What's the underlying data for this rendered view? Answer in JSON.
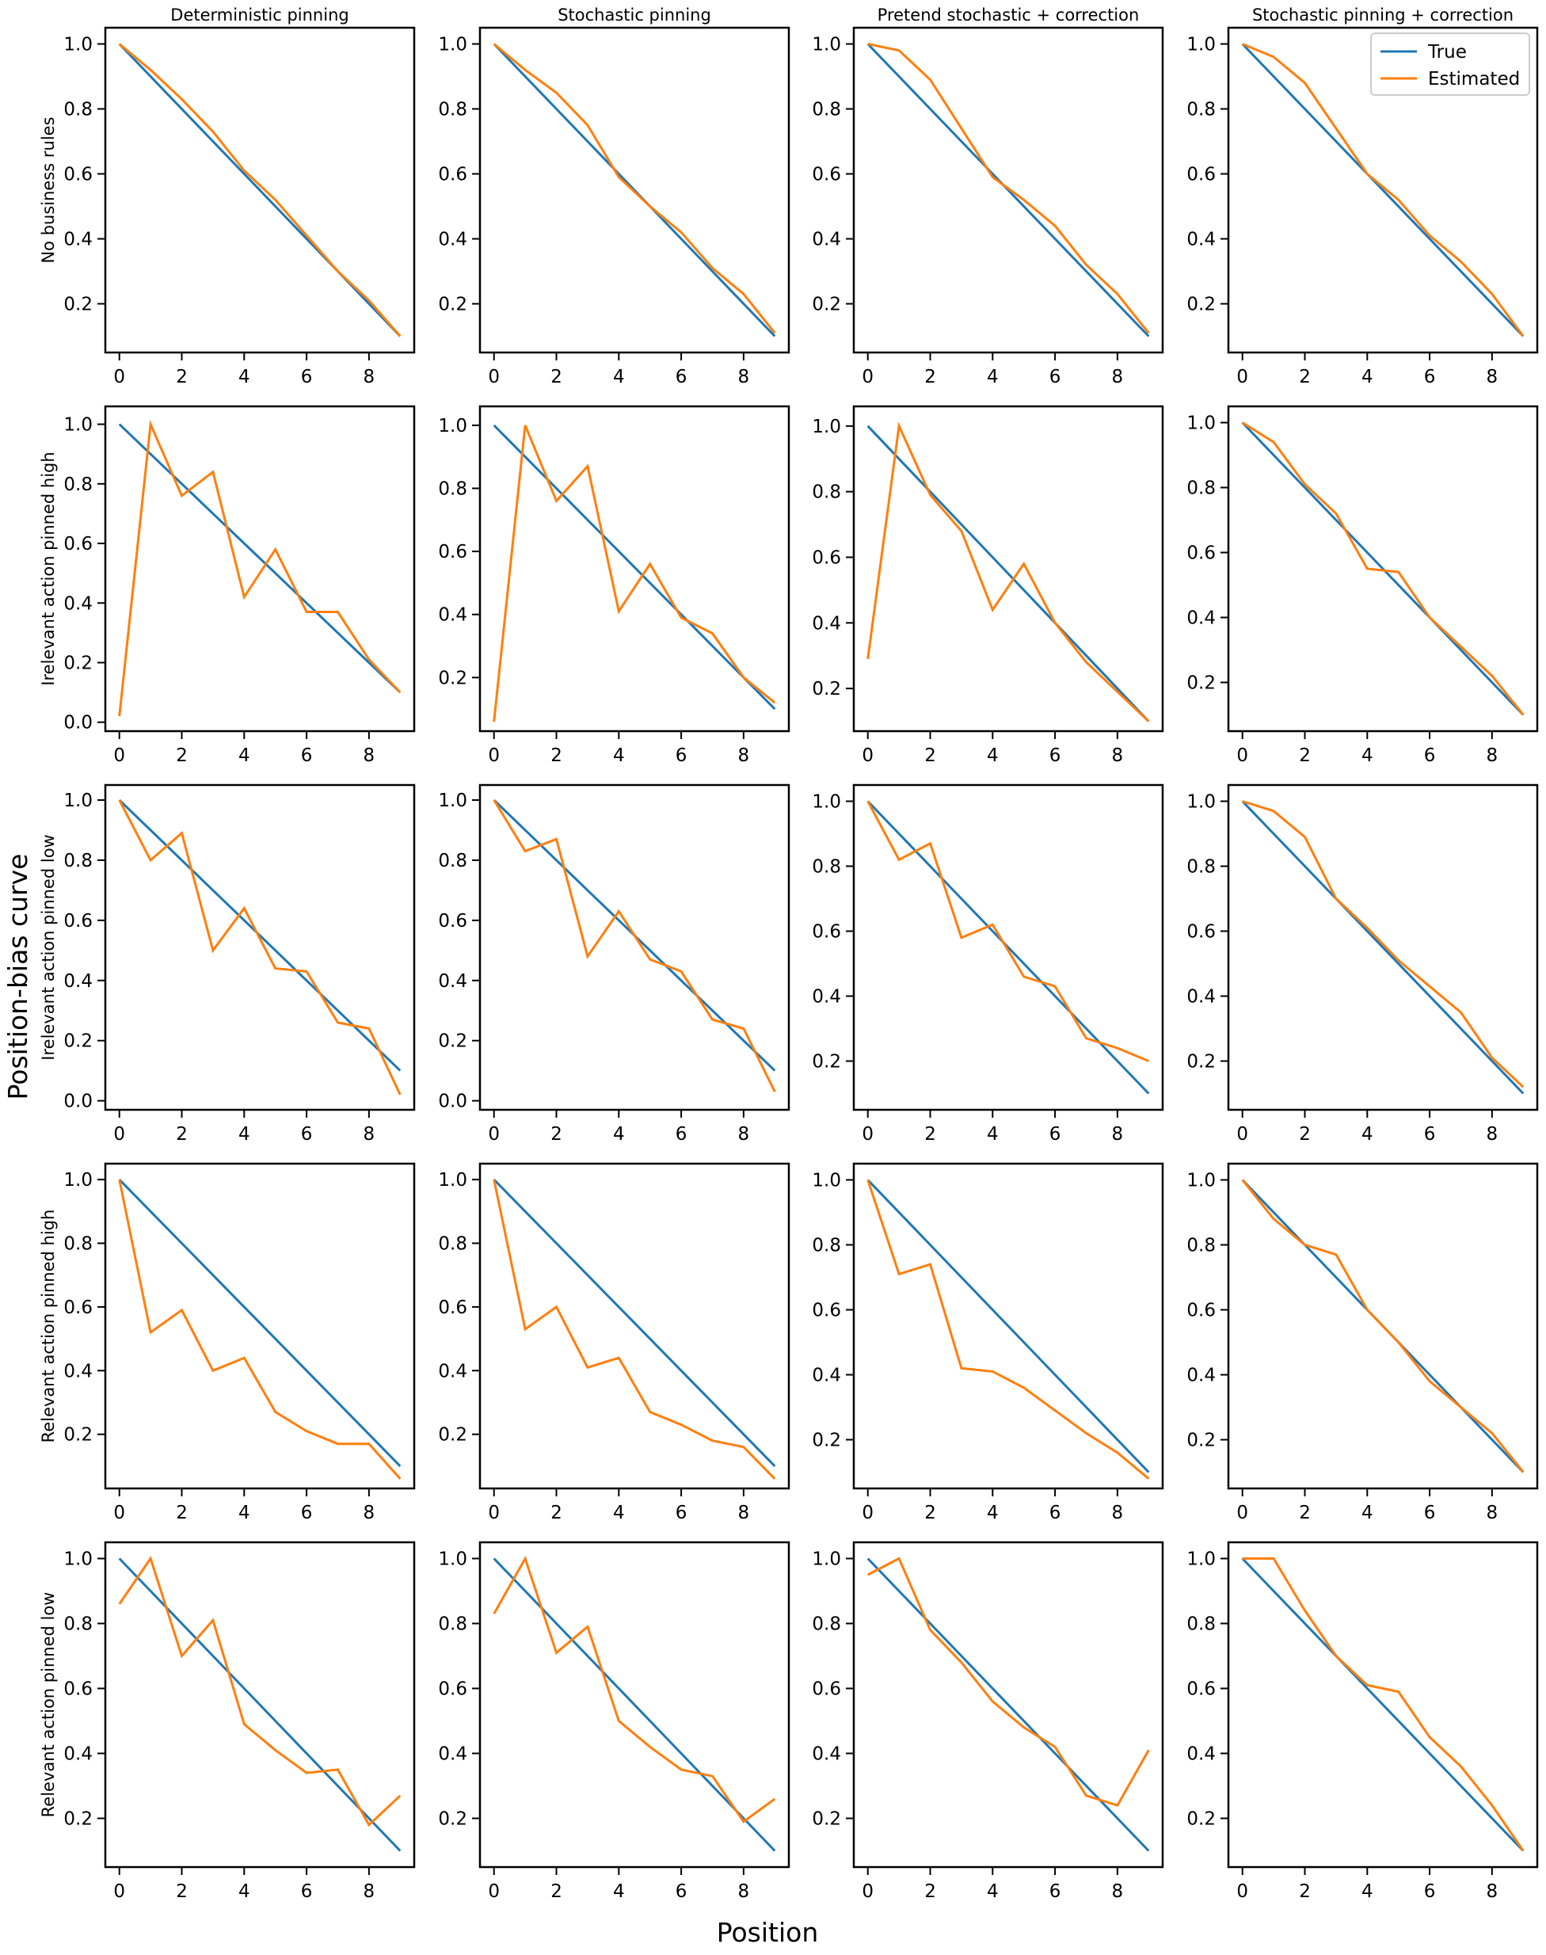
{
  "figure": {
    "ylabel": "Position-bias curve",
    "xlabel": "Position",
    "columns": [
      "Deterministic pinning",
      "Stochastic pinning",
      "Pretend stochastic + correction",
      "Stochastic pinning + correction"
    ],
    "rows": [
      "No business rules",
      "Irelevant action pinned high",
      "Irelevant action pinned low",
      "Relevant action pinned high",
      "Relevant action pinned low"
    ],
    "legend": {
      "entries": [
        "True",
        "Estimated"
      ],
      "placement": "upper-right of top-right panel"
    },
    "colors": {
      "true": "#1f77b4",
      "estimated": "#ff7f0e"
    }
  },
  "chart_data": {
    "type": "line",
    "x": [
      0,
      1,
      2,
      3,
      4,
      5,
      6,
      7,
      8,
      9
    ],
    "xticks": [
      0,
      2,
      4,
      6,
      8
    ],
    "true_curve": [
      1.0,
      0.9,
      0.8,
      0.7,
      0.6,
      0.5,
      0.4,
      0.3,
      0.2,
      0.1
    ],
    "panels": [
      {
        "row": 0,
        "col": 0,
        "ylim": [
          0.05,
          1.05
        ],
        "yticks": [
          0.2,
          0.4,
          0.6,
          0.8,
          1.0
        ],
        "estimated": [
          1.0,
          0.92,
          0.83,
          0.73,
          0.61,
          0.52,
          0.41,
          0.3,
          0.21,
          0.1
        ]
      },
      {
        "row": 0,
        "col": 1,
        "ylim": [
          0.05,
          1.05
        ],
        "yticks": [
          0.2,
          0.4,
          0.6,
          0.8,
          1.0
        ],
        "estimated": [
          1.0,
          0.92,
          0.85,
          0.75,
          0.59,
          0.5,
          0.42,
          0.31,
          0.23,
          0.11
        ]
      },
      {
        "row": 0,
        "col": 2,
        "ylim": [
          0.05,
          1.05
        ],
        "yticks": [
          0.2,
          0.4,
          0.6,
          0.8,
          1.0
        ],
        "estimated": [
          1.0,
          0.98,
          0.89,
          0.74,
          0.59,
          0.52,
          0.44,
          0.32,
          0.23,
          0.11
        ]
      },
      {
        "row": 0,
        "col": 3,
        "ylim": [
          0.05,
          1.05
        ],
        "yticks": [
          0.2,
          0.4,
          0.6,
          0.8,
          1.0
        ],
        "estimated": [
          1.0,
          0.96,
          0.88,
          0.74,
          0.6,
          0.52,
          0.41,
          0.33,
          0.23,
          0.1
        ]
      },
      {
        "row": 1,
        "col": 0,
        "ylim": [
          -0.03,
          1.06
        ],
        "yticks": [
          0.0,
          0.2,
          0.4,
          0.6,
          0.8,
          1.0
        ],
        "estimated": [
          0.02,
          1.0,
          0.76,
          0.84,
          0.42,
          0.58,
          0.37,
          0.37,
          0.21,
          0.1
        ]
      },
      {
        "row": 1,
        "col": 1,
        "ylim": [
          0.03,
          1.06
        ],
        "yticks": [
          0.2,
          0.4,
          0.6,
          0.8,
          1.0
        ],
        "estimated": [
          0.06,
          1.0,
          0.76,
          0.87,
          0.41,
          0.56,
          0.39,
          0.34,
          0.2,
          0.12
        ]
      },
      {
        "row": 1,
        "col": 2,
        "ylim": [
          0.07,
          1.06
        ],
        "yticks": [
          0.2,
          0.4,
          0.6,
          0.8,
          1.0
        ],
        "estimated": [
          0.29,
          1.0,
          0.79,
          0.68,
          0.44,
          0.58,
          0.4,
          0.28,
          0.19,
          0.1
        ]
      },
      {
        "row": 1,
        "col": 3,
        "ylim": [
          0.05,
          1.05
        ],
        "yticks": [
          0.2,
          0.4,
          0.6,
          0.8,
          1.0
        ],
        "estimated": [
          1.0,
          0.94,
          0.81,
          0.72,
          0.55,
          0.54,
          0.4,
          0.31,
          0.22,
          0.1
        ]
      },
      {
        "row": 2,
        "col": 0,
        "ylim": [
          -0.03,
          1.05
        ],
        "yticks": [
          0.0,
          0.2,
          0.4,
          0.6,
          0.8,
          1.0
        ],
        "estimated": [
          1.0,
          0.8,
          0.89,
          0.5,
          0.64,
          0.44,
          0.43,
          0.26,
          0.24,
          0.02
        ]
      },
      {
        "row": 2,
        "col": 1,
        "ylim": [
          -0.03,
          1.05
        ],
        "yticks": [
          0.0,
          0.2,
          0.4,
          0.6,
          0.8,
          1.0
        ],
        "estimated": [
          1.0,
          0.83,
          0.87,
          0.48,
          0.63,
          0.47,
          0.43,
          0.27,
          0.24,
          0.03
        ]
      },
      {
        "row": 2,
        "col": 2,
        "ylim": [
          0.05,
          1.05
        ],
        "yticks": [
          0.2,
          0.4,
          0.6,
          0.8,
          1.0
        ],
        "estimated": [
          1.0,
          0.82,
          0.87,
          0.58,
          0.62,
          0.46,
          0.43,
          0.27,
          0.24,
          0.2
        ]
      },
      {
        "row": 2,
        "col": 3,
        "ylim": [
          0.05,
          1.05
        ],
        "yticks": [
          0.2,
          0.4,
          0.6,
          0.8,
          1.0
        ],
        "estimated": [
          1.0,
          0.97,
          0.89,
          0.7,
          0.61,
          0.51,
          0.43,
          0.35,
          0.21,
          0.12
        ]
      },
      {
        "row": 3,
        "col": 0,
        "ylim": [
          0.03,
          1.05
        ],
        "yticks": [
          0.2,
          0.4,
          0.6,
          0.8,
          1.0
        ],
        "estimated": [
          1.0,
          0.52,
          0.59,
          0.4,
          0.44,
          0.27,
          0.21,
          0.17,
          0.17,
          0.06
        ]
      },
      {
        "row": 3,
        "col": 1,
        "ylim": [
          0.03,
          1.05
        ],
        "yticks": [
          0.2,
          0.4,
          0.6,
          0.8,
          1.0
        ],
        "estimated": [
          1.0,
          0.53,
          0.6,
          0.41,
          0.44,
          0.27,
          0.23,
          0.18,
          0.16,
          0.06
        ]
      },
      {
        "row": 3,
        "col": 2,
        "ylim": [
          0.05,
          1.05
        ],
        "yticks": [
          0.2,
          0.4,
          0.6,
          0.8,
          1.0
        ],
        "estimated": [
          1.0,
          0.71,
          0.74,
          0.42,
          0.41,
          0.36,
          0.29,
          0.22,
          0.16,
          0.08
        ]
      },
      {
        "row": 3,
        "col": 3,
        "ylim": [
          0.05,
          1.05
        ],
        "yticks": [
          0.2,
          0.4,
          0.6,
          0.8,
          1.0
        ],
        "estimated": [
          1.0,
          0.88,
          0.8,
          0.77,
          0.6,
          0.5,
          0.38,
          0.3,
          0.22,
          0.1
        ]
      },
      {
        "row": 4,
        "col": 0,
        "ylim": [
          0.05,
          1.05
        ],
        "yticks": [
          0.2,
          0.4,
          0.6,
          0.8,
          1.0
        ],
        "estimated": [
          0.86,
          1.0,
          0.7,
          0.81,
          0.49,
          0.41,
          0.34,
          0.35,
          0.18,
          0.27
        ]
      },
      {
        "row": 4,
        "col": 1,
        "ylim": [
          0.05,
          1.05
        ],
        "yticks": [
          0.2,
          0.4,
          0.6,
          0.8,
          1.0
        ],
        "estimated": [
          0.83,
          1.0,
          0.71,
          0.79,
          0.5,
          0.42,
          0.35,
          0.33,
          0.19,
          0.26
        ]
      },
      {
        "row": 4,
        "col": 2,
        "ylim": [
          0.05,
          1.05
        ],
        "yticks": [
          0.2,
          0.4,
          0.6,
          0.8,
          1.0
        ],
        "estimated": [
          0.95,
          1.0,
          0.78,
          0.68,
          0.56,
          0.48,
          0.42,
          0.27,
          0.24,
          0.41
        ]
      },
      {
        "row": 4,
        "col": 3,
        "ylim": [
          0.05,
          1.05
        ],
        "yticks": [
          0.2,
          0.4,
          0.6,
          0.8,
          1.0
        ],
        "estimated": [
          1.0,
          1.0,
          0.84,
          0.7,
          0.61,
          0.59,
          0.45,
          0.36,
          0.24,
          0.1
        ]
      }
    ]
  }
}
